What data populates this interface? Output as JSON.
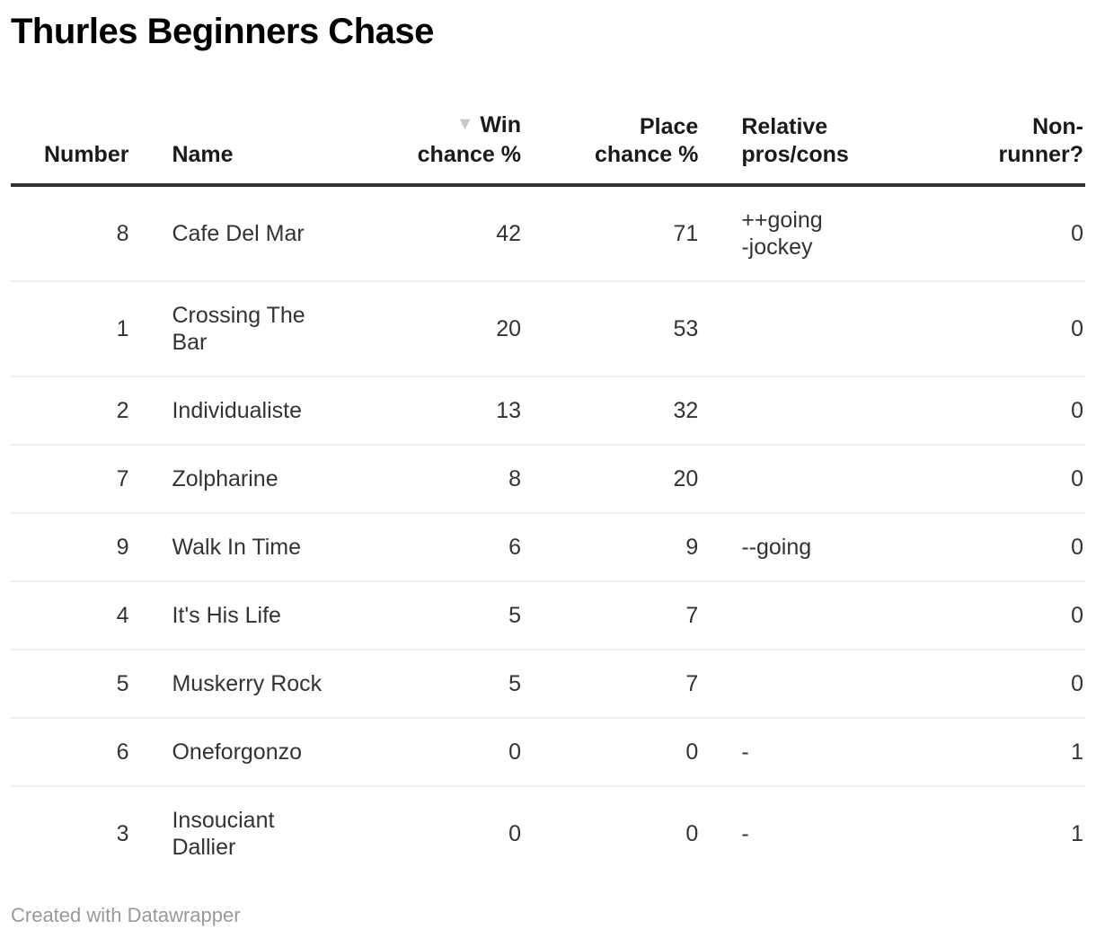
{
  "title": "Thurles Beginners Chase",
  "sort": {
    "column": "win",
    "direction": "desc",
    "indicator": "▼"
  },
  "table": {
    "columns": [
      {
        "id": "number",
        "label": "Number",
        "align": "right",
        "sorted": false
      },
      {
        "id": "name",
        "label": "Name",
        "align": "left",
        "sorted": false
      },
      {
        "id": "win",
        "label": "Win\nchance %",
        "align": "right",
        "sorted": true
      },
      {
        "id": "place",
        "label": "Place\nchance %",
        "align": "right",
        "sorted": false
      },
      {
        "id": "pros",
        "label": "Relative\npros/cons",
        "align": "left",
        "sorted": false
      },
      {
        "id": "nonrunner",
        "label": "Non-\nrunner?",
        "align": "right",
        "sorted": false
      }
    ],
    "rows": [
      {
        "number": "8",
        "name": "Cafe Del Mar",
        "win": "42",
        "place": "71",
        "pros": "++going\n-jockey",
        "nonrunner": "0"
      },
      {
        "number": "1",
        "name": "Crossing The Bar",
        "win": "20",
        "place": "53",
        "pros": "",
        "nonrunner": "0"
      },
      {
        "number": "2",
        "name": "Individualiste",
        "win": "13",
        "place": "32",
        "pros": "",
        "nonrunner": "0"
      },
      {
        "number": "7",
        "name": "Zolpharine",
        "win": "8",
        "place": "20",
        "pros": "",
        "nonrunner": "0"
      },
      {
        "number": "9",
        "name": "Walk In Time",
        "win": "6",
        "place": "9",
        "pros": "--going",
        "nonrunner": "0"
      },
      {
        "number": "4",
        "name": "It's His Life",
        "win": "5",
        "place": "7",
        "pros": "",
        "nonrunner": "0"
      },
      {
        "number": "5",
        "name": "Muskerry Rock",
        "win": "5",
        "place": "7",
        "pros": "",
        "nonrunner": "0"
      },
      {
        "number": "6",
        "name": "Oneforgonzo",
        "win": "0",
        "place": "0",
        "pros": "-",
        "nonrunner": "1"
      },
      {
        "number": "3",
        "name": "Insouciant Dallier",
        "win": "0",
        "place": "0",
        "pros": "-",
        "nonrunner": "1"
      }
    ]
  },
  "footer": {
    "attribution": "Created with Datawrapper"
  },
  "colors": {
    "title_text": "#000000",
    "header_text": "#1a1a1a",
    "body_text": "#333333",
    "header_rule": "#333333",
    "row_rule": "#eeeeee",
    "sort_indicator": "#c8c8c8",
    "footer_text": "#999999"
  },
  "chart_data": {
    "type": "table",
    "title": "Thurles Beginners Chase",
    "columns": [
      "Number",
      "Name",
      "Win chance %",
      "Place chance %",
      "Relative pros/cons",
      "Non-runner?"
    ],
    "sorted_by": {
      "column": "Win chance %",
      "direction": "desc"
    },
    "rows": [
      [
        8,
        "Cafe Del Mar",
        42,
        71,
        "++going -jockey",
        0
      ],
      [
        1,
        "Crossing The Bar",
        20,
        53,
        "",
        0
      ],
      [
        2,
        "Individualiste",
        13,
        32,
        "",
        0
      ],
      [
        7,
        "Zolpharine",
        8,
        20,
        "",
        0
      ],
      [
        9,
        "Walk In Time",
        6,
        9,
        "--going",
        0
      ],
      [
        4,
        "It's His Life",
        5,
        7,
        "",
        0
      ],
      [
        5,
        "Muskerry Rock",
        5,
        7,
        "",
        0
      ],
      [
        6,
        "Oneforgonzo",
        0,
        0,
        "-",
        1
      ],
      [
        3,
        "Insouciant Dallier",
        0,
        0,
        "-",
        1
      ]
    ]
  }
}
